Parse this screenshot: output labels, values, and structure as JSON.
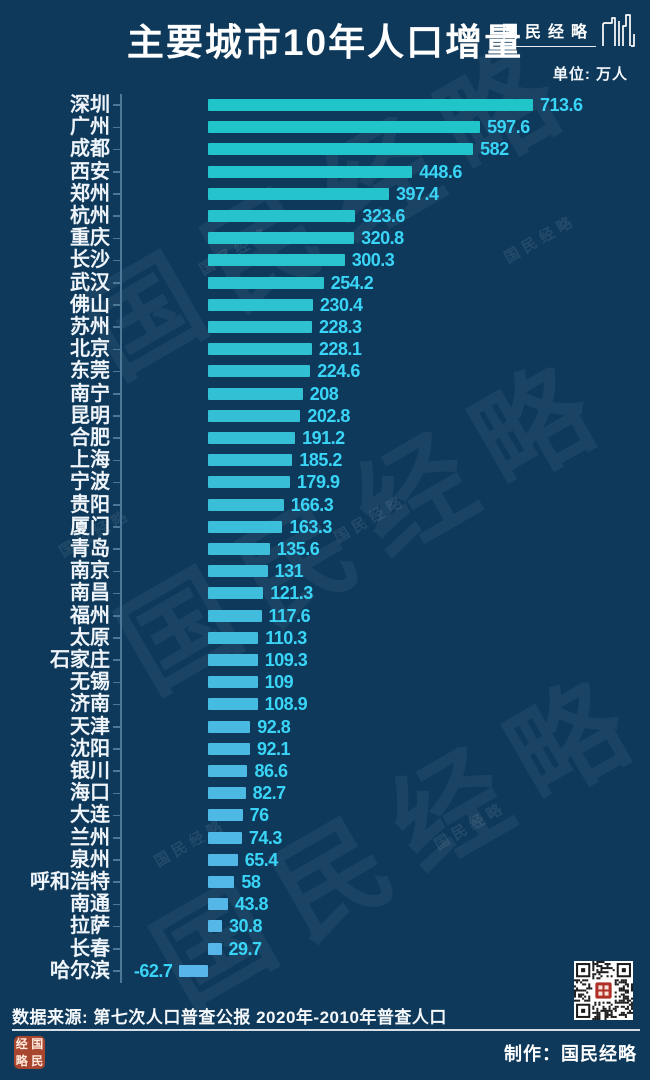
{
  "header": {
    "title": "主要城市10年人口增量",
    "logo_text": "国民经略"
  },
  "chart": {
    "unit_label": "单位: 万人"
  },
  "chart_data": {
    "type": "bar",
    "orientation": "horizontal",
    "title": "主要城市10年人口增量",
    "unit": "万人",
    "categories": [
      "深圳",
      "广州",
      "成都",
      "西安",
      "郑州",
      "杭州",
      "重庆",
      "长沙",
      "武汉",
      "佛山",
      "苏州",
      "北京",
      "东莞",
      "南宁",
      "昆明",
      "合肥",
      "上海",
      "宁波",
      "贵阳",
      "厦门",
      "青岛",
      "南京",
      "南昌",
      "福州",
      "太原",
      "石家庄",
      "无锡",
      "济南",
      "天津",
      "沈阳",
      "银川",
      "海口",
      "大连",
      "兰州",
      "泉州",
      "呼和浩特",
      "南通",
      "拉萨",
      "长春",
      "哈尔滨"
    ],
    "values": [
      713.6,
      597.6,
      582,
      448.6,
      397.4,
      323.6,
      320.8,
      300.3,
      254.2,
      230.4,
      228.3,
      228.1,
      224.6,
      208,
      202.8,
      191.2,
      185.2,
      179.9,
      166.3,
      163.3,
      135.6,
      131,
      121.3,
      117.6,
      110.3,
      109.3,
      109,
      108.9,
      92.8,
      92.1,
      86.6,
      82.7,
      76,
      74.3,
      65.4,
      58,
      43.8,
      30.8,
      29.7,
      -62.7
    ],
    "value_labels": [
      "713.6",
      "597.6",
      "582",
      "448.6",
      "397.4",
      "323.6",
      "320.8",
      "300.3",
      "254.2",
      "230.4",
      "228.3",
      "228.1",
      "224.6",
      "208",
      "202.8",
      "191.2",
      "185.2",
      "179.9",
      "166.3",
      "163.3",
      "135.6",
      "131",
      "121.3",
      "117.6",
      "110.3",
      "109.3",
      "109",
      "108.9",
      "92.8",
      "92.1",
      "86.6",
      "82.7",
      "76",
      "74.3",
      "65.4",
      "58",
      "43.8",
      "30.8",
      "29.7",
      "-62.7"
    ],
    "xlim": [
      -200,
      950
    ],
    "grid": false,
    "legend": false,
    "bar_color_top": "#1fc5c9",
    "bar_color_bottom": "#58b6ea",
    "value_label_color": "#39d4f6",
    "background_color": "#0e395a"
  },
  "watermark": {
    "text": "国民经略"
  },
  "footer": {
    "source": "数据来源: 第七次人口普查公报 2020年-2010年普查人口",
    "credit": "制作：国民经略",
    "seal_chars": [
      "经",
      "国",
      "略",
      "民"
    ]
  }
}
